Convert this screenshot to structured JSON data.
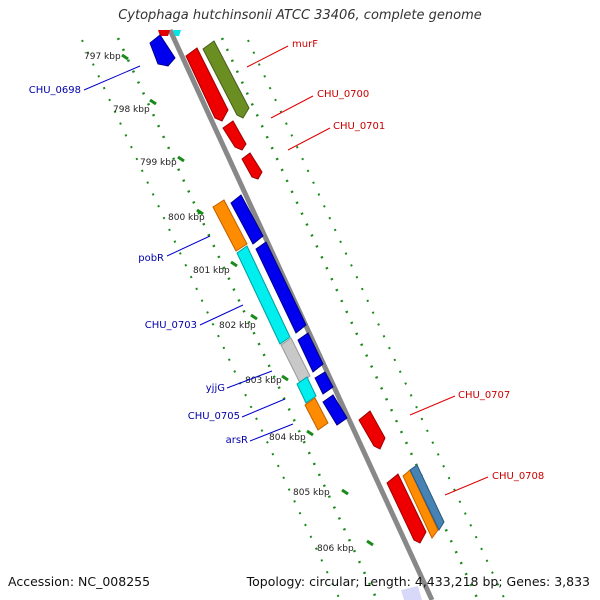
{
  "title": "Cytophaga hutchinsonii ATCC 33406, complete genome",
  "footer": {
    "accession": "Accession: NC_008255",
    "stats": "Topology: circular; Length: 4,433,218 bp; Genes: 3,833"
  },
  "colors": {
    "backbone": "#888888",
    "ticks": "#1a8a1a",
    "forward_genes_label": "#cc0000",
    "reverse_genes_label": "#0000aa"
  },
  "scale_labels": [
    "797 kbp",
    "798 kbp",
    "799 kbp",
    "800 kbp",
    "801 kbp",
    "802 kbp",
    "803 kbp",
    "804 kbp",
    "805 kbp",
    "806 kbp"
  ],
  "gene_labels": {
    "forward": [
      "murF",
      "CHU_0700",
      "CHU_0701",
      "CHU_0707",
      "CHU_0708"
    ],
    "reverse": [
      "CHU_0698",
      "pobR",
      "CHU_0703",
      "yjjG",
      "CHU_0705",
      "arsR"
    ]
  }
}
